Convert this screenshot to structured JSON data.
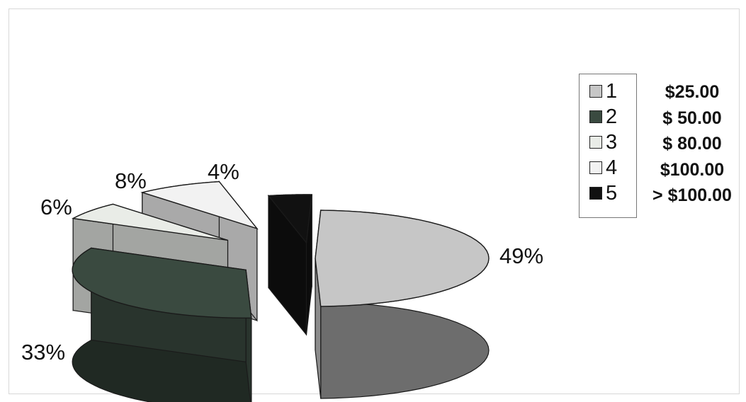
{
  "chart_data": {
    "type": "pie",
    "style": "3d-exploded",
    "categories": [
      "1",
      "2",
      "3",
      "4",
      "5"
    ],
    "values": [
      49,
      33,
      6,
      8,
      4
    ],
    "labels": [
      "49%",
      "33%",
      "6%",
      "8%",
      "4%"
    ],
    "colors": [
      "#c6c6c6",
      "#3a4a40",
      "#e9ece7",
      "#f2f2f2",
      "#111111"
    ],
    "legend": {
      "position": "right",
      "entries": [
        "1",
        "2",
        "3",
        "4",
        "5"
      ]
    },
    "annotations": [
      "$25.00",
      "$ 50.00",
      "$ 80.00",
      "$100.00",
      "> $100.00"
    ]
  }
}
